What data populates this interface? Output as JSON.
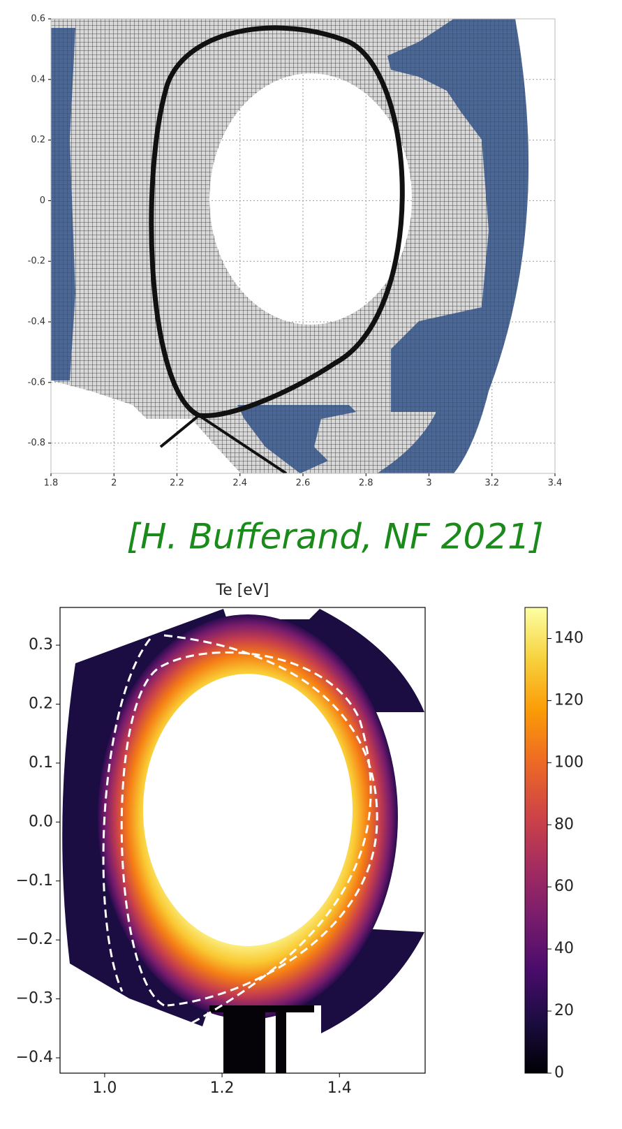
{
  "chart_data": [
    {
      "type": "mesh",
      "xlim": [
        1.8,
        3.4
      ],
      "ylim": [
        -0.9,
        0.6
      ],
      "xticks": [
        1.8,
        2,
        2.2,
        2.4,
        2.6,
        2.8,
        3,
        3.2,
        3.4
      ],
      "yticks": [
        0.6,
        0.4,
        0.2,
        0,
        -0.2,
        -0.4,
        -0.6,
        -0.8
      ],
      "grid": true
    },
    {
      "type": "heatmap",
      "title": "Te [eV]",
      "xlim": [
        0.924,
        1.546
      ],
      "ylim": [
        -0.426,
        0.364
      ],
      "xticks": [
        {
          "value": 1,
          "label": "1.0"
        },
        {
          "value": 1.2,
          "label": "1.2"
        },
        {
          "value": 1.4,
          "label": "1.4"
        }
      ],
      "yticks": [
        0.3,
        0.2,
        0.1,
        {
          "value": 0,
          "label": "0.0"
        },
        {
          "value": -0.1,
          "label": "−0.1"
        },
        {
          "value": -0.2,
          "label": "−0.2"
        },
        {
          "value": -0.3,
          "label": "−0.3"
        },
        {
          "value": -0.4,
          "label": "−0.4"
        }
      ],
      "colormap": "inferno",
      "clim": [
        0,
        150
      ],
      "cticks": [
        0,
        20,
        40,
        60,
        80,
        100,
        120,
        140
      ]
    }
  ],
  "caption": "[H. Bufferand, NF 2021]"
}
